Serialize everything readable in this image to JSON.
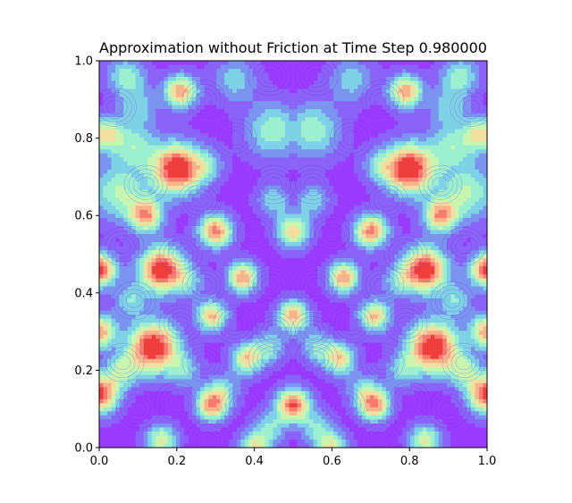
{
  "chart_data": {
    "type": "heatmap",
    "title": "Approximation without Friction at Time Step 0.980000",
    "xlabel": "",
    "ylabel": "",
    "xlim": [
      0.0,
      1.0
    ],
    "ylim": [
      0.0,
      1.0
    ],
    "x_ticks": [
      "0.0",
      "0.2",
      "0.4",
      "0.6",
      "0.8",
      "1.0"
    ],
    "y_ticks": [
      "0.0",
      "0.2",
      "0.4",
      "0.6",
      "0.8",
      "1.0"
    ],
    "colormap": "rainbow",
    "grid": false,
    "legend": "none",
    "contour_style": "filled contours with thin line contours overlaid",
    "symmetry": "mirror-symmetric about x = 0.5"
  }
}
